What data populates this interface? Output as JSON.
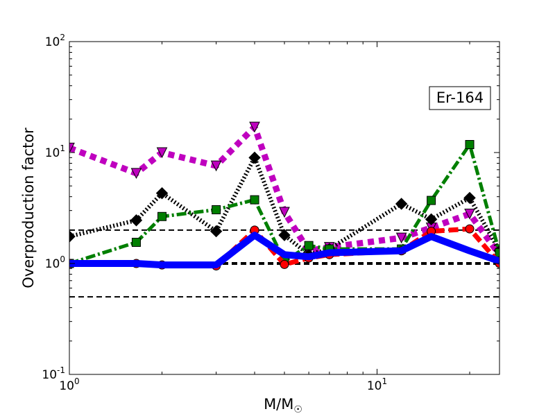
{
  "chart_data": {
    "type": "line",
    "title": "",
    "xlabel": "M/M",
    "xlabel_sub": "☉",
    "ylabel": "Overproduction factor",
    "xscale": "log",
    "yscale": "log",
    "xlim": [
      1,
      25
    ],
    "ylim": [
      0.1,
      100
    ],
    "x_ticks": [
      {
        "value": 1,
        "base": "10",
        "exp": "0"
      },
      {
        "value": 10,
        "base": "10",
        "exp": "1"
      }
    ],
    "y_ticks": [
      {
        "value": 0.1,
        "base": "10",
        "exp": "-1"
      },
      {
        "value": 1,
        "base": "10",
        "exp": "0"
      },
      {
        "value": 10,
        "base": "10",
        "exp": "1"
      },
      {
        "value": 100,
        "base": "10",
        "exp": "2"
      }
    ],
    "annotation": "Er-164",
    "reference_lines": [
      {
        "y": 2,
        "style": "dashed",
        "weight": "thin"
      },
      {
        "y": 1,
        "style": "dashed",
        "weight": "thick"
      },
      {
        "y": 0.5,
        "style": "dashed",
        "weight": "thin"
      }
    ],
    "series": [
      {
        "color": "#bf00bf",
        "marker": "triangle-down",
        "dash": "dotted-thick",
        "x": [
          1,
          1.65,
          2,
          3,
          4,
          5,
          6,
          7,
          12,
          15,
          20,
          25
        ],
        "y": [
          11,
          6.5,
          10,
          7.6,
          17,
          2.9,
          1.3,
          1.4,
          1.7,
          2.1,
          2.8,
          1.2
        ]
      },
      {
        "color": "#000000",
        "marker": "diamond",
        "dash": "dotted",
        "x": [
          1,
          1.65,
          2,
          3,
          4,
          5,
          6,
          7,
          12,
          15,
          20,
          25
        ],
        "y": [
          1.75,
          2.45,
          4.3,
          1.95,
          9.0,
          1.8,
          1.2,
          1.35,
          3.45,
          2.5,
          3.9,
          1.3
        ]
      },
      {
        "color": "#007f00",
        "marker": "square",
        "dash": "dashdot",
        "x": [
          1,
          1.65,
          2,
          3,
          4,
          5,
          6,
          7,
          12,
          15,
          20,
          25
        ],
        "y": [
          1.0,
          1.55,
          2.65,
          3.05,
          3.75,
          1.05,
          1.45,
          1.35,
          1.35,
          3.7,
          11.8,
          1.25
        ]
      },
      {
        "color": "#ff0000",
        "marker": "circle",
        "dash": "dashed",
        "x": [
          1,
          1.65,
          2,
          3,
          4,
          5,
          6,
          7,
          12,
          15,
          20,
          25
        ],
        "y": [
          1.0,
          1.0,
          0.97,
          0.95,
          2.0,
          0.98,
          1.12,
          1.2,
          1.3,
          1.95,
          2.05,
          1.0
        ]
      },
      {
        "color": "#0000ff",
        "marker": "none",
        "dash": "solid",
        "x": [
          1,
          1.65,
          2,
          3,
          4,
          5,
          6,
          7,
          12,
          15,
          20,
          25
        ],
        "y": [
          1.0,
          1.0,
          0.97,
          0.97,
          1.8,
          1.2,
          1.15,
          1.25,
          1.3,
          1.75,
          1.3,
          1.05
        ]
      }
    ]
  }
}
